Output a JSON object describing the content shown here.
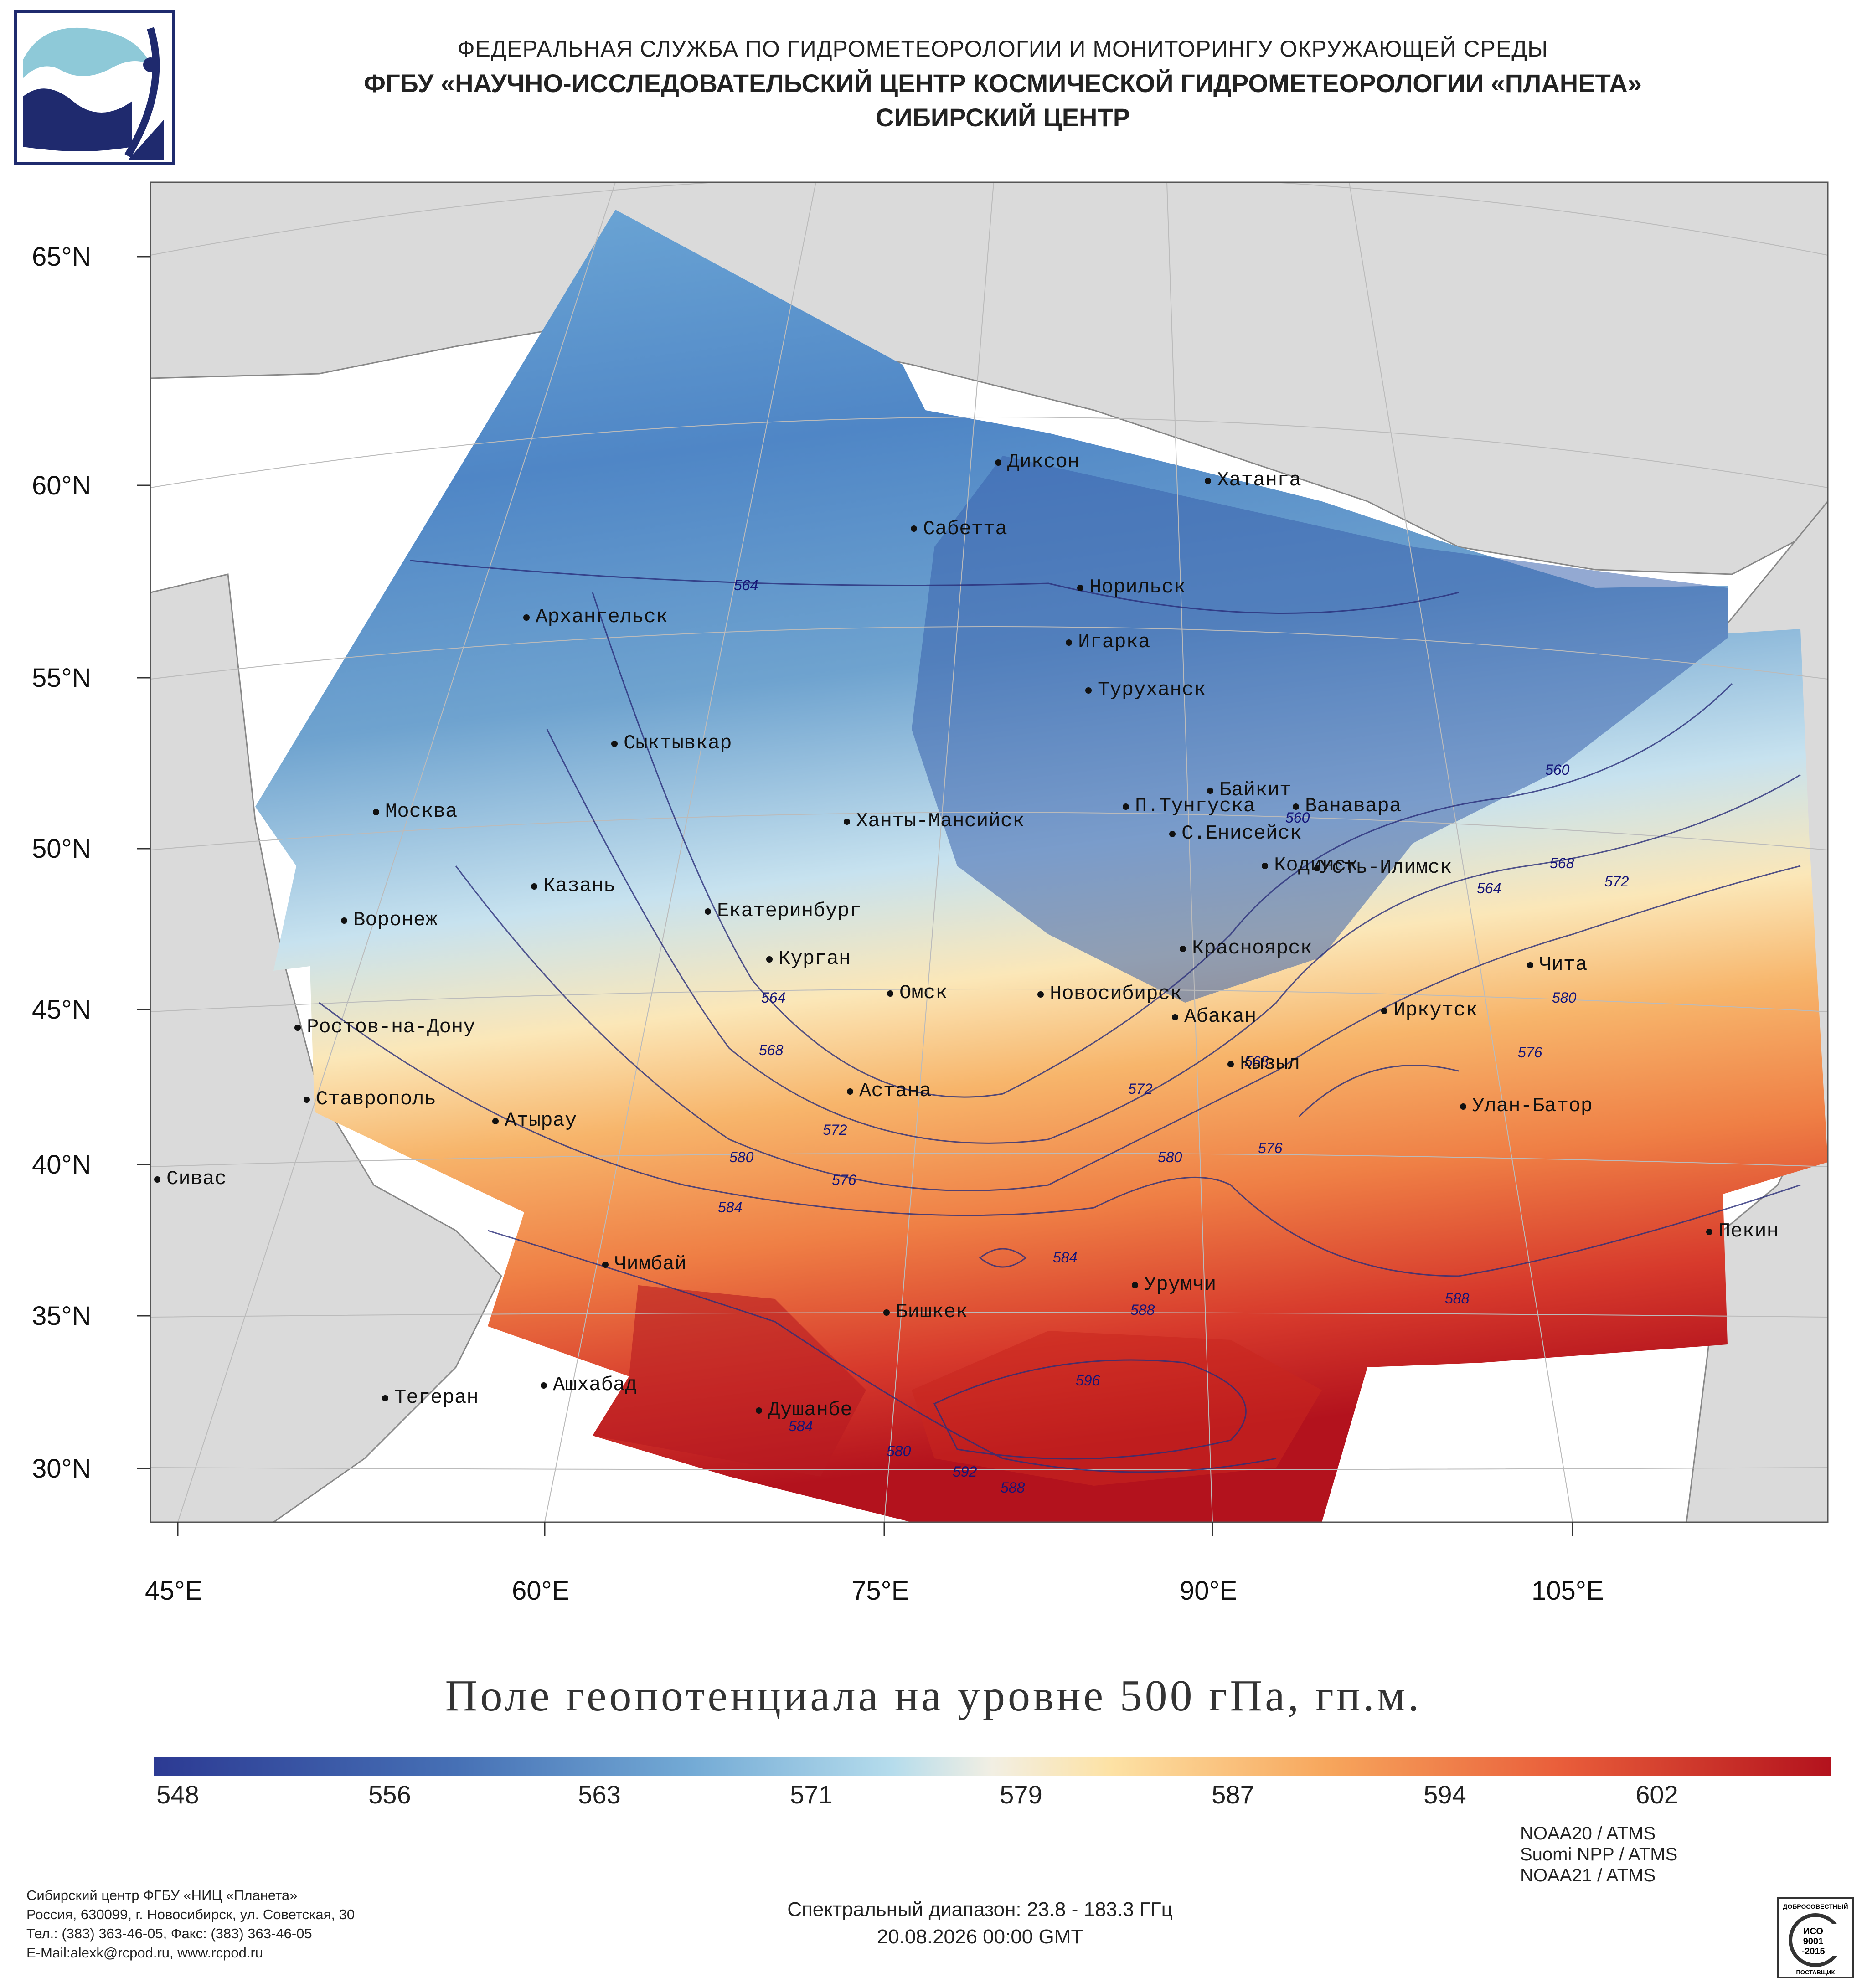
{
  "header": {
    "line1": "ФЕДЕРАЛЬНАЯ СЛУЖБА ПО ГИДРОМЕТЕОРОЛОГИИ И МОНИТОРИНГУ ОКРУЖАЮЩЕЙ СРЕДЫ",
    "line2": "ФГБУ «НАУЧНО-ИССЛЕДОВАТЕЛЬСКИЙ ЦЕНТР КОСМИЧЕСКОЙ ГИДРОМЕТЕОРОЛОГИИ «ПЛАНЕТА»",
    "line3": "СИБИРСКИЙ ЦЕНТР"
  },
  "map": {
    "lat_labels": [
      "65°N",
      "60°N",
      "55°N",
      "50°N",
      "45°N",
      "40°N",
      "35°N",
      "30°N"
    ],
    "lon_labels": [
      "45°E",
      "60°E",
      "75°E",
      "90°E",
      "105°E"
    ],
    "cities": [
      {
        "name": "Диксон"
      },
      {
        "name": "Хатанга"
      },
      {
        "name": "Сабетта"
      },
      {
        "name": "Норильск"
      },
      {
        "name": "Архангельск"
      },
      {
        "name": "Игарка"
      },
      {
        "name": "Туруханск"
      },
      {
        "name": "Сыктывкар"
      },
      {
        "name": "Байкит"
      },
      {
        "name": "Москва"
      },
      {
        "name": "П.Тунгуска"
      },
      {
        "name": "Ванавара"
      },
      {
        "name": "Ханты-Мансийск"
      },
      {
        "name": "С.Енисейск"
      },
      {
        "name": "Кодинск"
      },
      {
        "name": "Усть-Илимск"
      },
      {
        "name": "Казань"
      },
      {
        "name": "Екатеринбург"
      },
      {
        "name": "Воронеж"
      },
      {
        "name": "Красноярск"
      },
      {
        "name": "Курган"
      },
      {
        "name": "Чита"
      },
      {
        "name": "Омск"
      },
      {
        "name": "Новосибирск"
      },
      {
        "name": "Абакан"
      },
      {
        "name": "Иркутск"
      },
      {
        "name": "Ростов-на-Дону"
      },
      {
        "name": "Кызыл"
      },
      {
        "name": "Астана"
      },
      {
        "name": "Ставрополь"
      },
      {
        "name": "Улан-Батор"
      },
      {
        "name": "Атырау"
      },
      {
        "name": "Сивас"
      },
      {
        "name": "Пекин"
      },
      {
        "name": "Чимбай"
      },
      {
        "name": "Урумчи"
      },
      {
        "name": "Бишкек"
      },
      {
        "name": "Ашхабад"
      },
      {
        "name": "Тегеран"
      },
      {
        "name": "Душанбе"
      }
    ],
    "contour_labels": [
      "564",
      "564",
      "568",
      "572",
      "580",
      "576",
      "584",
      "560",
      "560",
      "564",
      "568",
      "572",
      "580",
      "576",
      "572",
      "580",
      "576",
      "568",
      "584",
      "588",
      "588",
      "596",
      "592",
      "588",
      "580",
      "584"
    ]
  },
  "title": "Поле геопотенциала на уровне 500 гПа, гп.м.",
  "colorbar": {
    "ticks": [
      "548",
      "556",
      "563",
      "571",
      "579",
      "587",
      "594",
      "602"
    ]
  },
  "footer": {
    "address": [
      "Сибирский центр ФГБУ «НИЦ «Планета»",
      "Россия, 630099, г. Новосибирск, ул. Советская, 30",
      "Тел.: (383) 363-46-05, Факс: (383) 363-46-05",
      "E-Mail:alexk@rcpod.ru, www.rcpod.ru"
    ],
    "spectral": "Спектральный диапазон: 23.8 - 183.3 ГГц",
    "datetime": "20.08.2026 00:00 GMT",
    "satellites": [
      "NOAA20 / ATMS",
      "Suomi NPP / ATMS",
      "NOAA21 / ATMS"
    ],
    "iso": {
      "top": "ДОБРОСОВЕСТНЫЙ",
      "mid1": "ИСО",
      "mid2": "9001",
      "mid3": "-2015",
      "bottom": "ПОСТАВЩИК"
    }
  },
  "colors": {
    "cold": "#2c3a93",
    "cool": "#6aa6d6",
    "neutral": "#f2efe3",
    "warm": "#f7a65c",
    "hot": "#c1121f",
    "land": "#dadada",
    "contour": "#2a2e7a"
  }
}
